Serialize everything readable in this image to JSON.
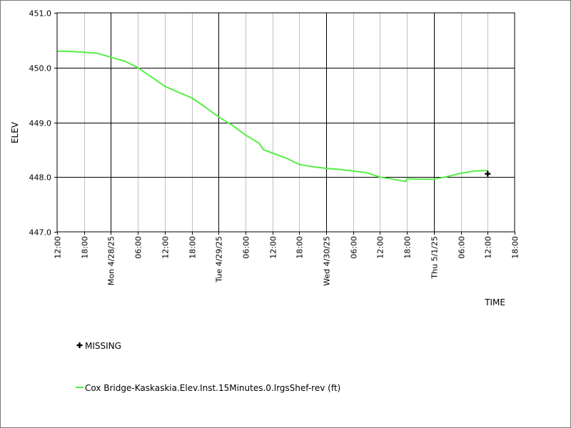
{
  "chart_data": {
    "type": "line",
    "xlabel": "TIME",
    "ylabel": "ELEV",
    "ylim": [
      447.0,
      451.0
    ],
    "xlim": [
      "2025-04-27 12:00",
      "2025-05-01 18:00"
    ],
    "y_ticks": [
      "451.0",
      "450.0",
      "449.0",
      "448.0",
      "447.0"
    ],
    "x_ticks": [
      "12:00",
      "18:00",
      "Mon 4/28/25",
      "06:00",
      "12:00",
      "18:00",
      "Tue 4/29/25",
      "06:00",
      "12:00",
      "18:00",
      "Wed 4/30/25",
      "06:00",
      "12:00",
      "18:00",
      "Thu 5/1/25",
      "06:00",
      "12:00",
      "18:00"
    ],
    "grid": true,
    "legend": [
      {
        "label": "MISSING",
        "marker": "plus",
        "color": "#000000"
      },
      {
        "label": "Cox Bridge-Kaskaskia.Elev.Inst.15Minutes.0.lrgsShef-rev (ft)",
        "marker": "line",
        "color": "#55ee44"
      }
    ],
    "series": [
      {
        "name": "Cox Bridge-Kaskaskia.Elev.Inst.15Minutes.0.lrgsShef-rev (ft)",
        "color": "#55ee44",
        "x": [
          "2025-04-27 12:00",
          "2025-04-27 14:00",
          "2025-04-27 18:00",
          "2025-04-27 21:00",
          "2025-04-28 00:00",
          "2025-04-28 03:00",
          "2025-04-28 06:00",
          "2025-04-28 09:00",
          "2025-04-28 12:00",
          "2025-04-28 15:00",
          "2025-04-28 18:00",
          "2025-04-28 21:00",
          "2025-04-29 00:00",
          "2025-04-29 03:00",
          "2025-04-29 06:00",
          "2025-04-29 09:00",
          "2025-04-29 10:00",
          "2025-04-29 12:00",
          "2025-04-29 15:00",
          "2025-04-29 18:00",
          "2025-04-29 21:00",
          "2025-04-30 00:00",
          "2025-04-30 03:00",
          "2025-04-30 06:00",
          "2025-04-30 09:00",
          "2025-04-30 12:00",
          "2025-04-30 15:00",
          "2025-04-30 17:45",
          "2025-04-30 18:00",
          "2025-04-30 21:00",
          "2025-05-01 00:00",
          "2025-05-01 03:00",
          "2025-05-01 06:00",
          "2025-05-01 09:00",
          "2025-05-01 12:00"
        ],
        "values": [
          450.3,
          450.3,
          450.28,
          450.26,
          450.19,
          450.12,
          450.0,
          449.83,
          449.66,
          449.55,
          449.45,
          449.28,
          449.1,
          448.95,
          448.77,
          448.62,
          448.5,
          448.44,
          448.35,
          448.23,
          448.19,
          448.16,
          448.14,
          448.11,
          448.08,
          448.0,
          447.96,
          447.92,
          447.97,
          447.96,
          447.96,
          448.01,
          448.07,
          448.11,
          448.12
        ]
      }
    ],
    "missing": [
      {
        "x": "2025-05-01 12:00",
        "y": 448.06
      }
    ]
  }
}
